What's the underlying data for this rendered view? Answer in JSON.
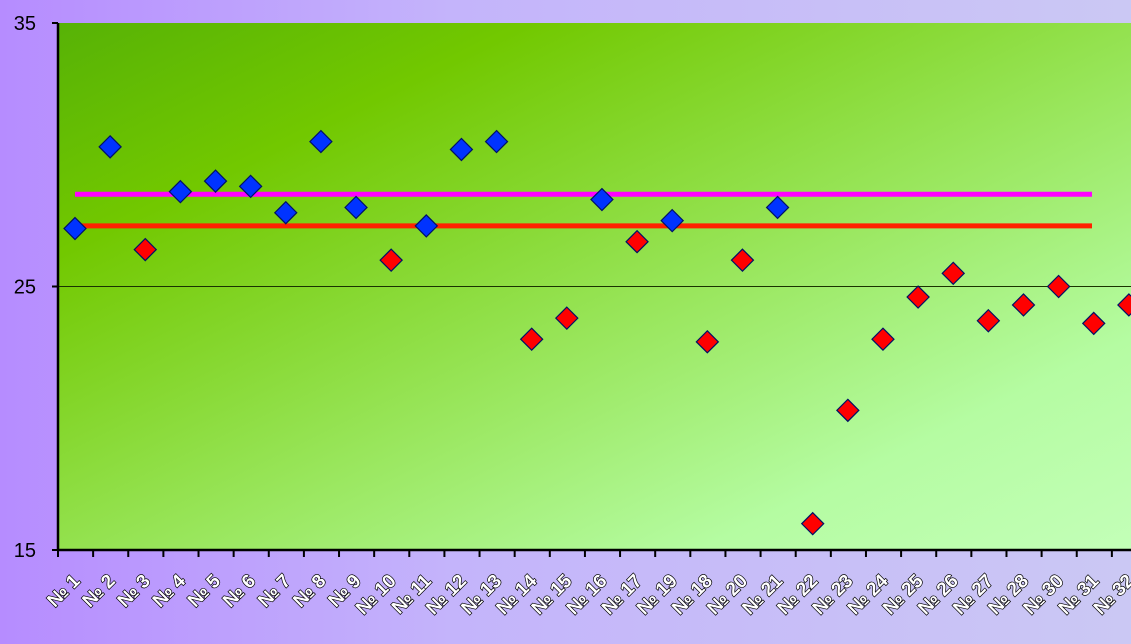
{
  "chart_data": {
    "type": "scatter",
    "categories": [
      "№ 1",
      "№ 2",
      "№ 3",
      "№ 4",
      "№ 5",
      "№ 6",
      "№ 7",
      "№ 8",
      "№ 9",
      "№ 10",
      "№ 11",
      "№ 12",
      "№ 13",
      "№ 14",
      "№ 15",
      "№ 16",
      "№ 17",
      "№ 19",
      "№ 18",
      "№ 20",
      "№ 21",
      "№ 22",
      "№ 23",
      "№ 24",
      "№ 25",
      "№ 26",
      "№ 27",
      "№ 28",
      "№ 30",
      "№ 31",
      "№ 32"
    ],
    "ylim": [
      15,
      35
    ],
    "yticks": [
      "15",
      "25",
      "35"
    ],
    "grid": "horizontal at 25",
    "series": [
      {
        "marker": "diamond",
        "color": "#0033ff",
        "points": [
          {
            "i": 0,
            "y": 27.2
          },
          {
            "i": 1,
            "y": 30.3
          },
          {
            "i": 3,
            "y": 28.6
          },
          {
            "i": 4,
            "y": 29.0
          },
          {
            "i": 5,
            "y": 28.8
          },
          {
            "i": 6,
            "y": 27.8
          },
          {
            "i": 7,
            "y": 30.5
          },
          {
            "i": 8,
            "y": 28.0
          },
          {
            "i": 10,
            "y": 27.3
          },
          {
            "i": 11,
            "y": 30.2
          },
          {
            "i": 12,
            "y": 30.5
          },
          {
            "i": 15,
            "y": 28.3
          },
          {
            "i": 17,
            "y": 27.5
          },
          {
            "i": 20,
            "y": 28.0
          }
        ]
      },
      {
        "marker": "diamond",
        "color": "#ff0000",
        "points": [
          {
            "i": 2,
            "y": 26.4
          },
          {
            "i": 9,
            "y": 26.0
          },
          {
            "i": 13,
            "y": 23.0
          },
          {
            "i": 14,
            "y": 23.8
          },
          {
            "i": 16,
            "y": 26.7
          },
          {
            "i": 18,
            "y": 22.9
          },
          {
            "i": 19,
            "y": 26.0
          },
          {
            "i": 21,
            "y": 16.0
          },
          {
            "i": 22,
            "y": 20.3
          },
          {
            "i": 23,
            "y": 23.0
          },
          {
            "i": 24,
            "y": 24.6
          },
          {
            "i": 25,
            "y": 25.5
          },
          {
            "i": 26,
            "y": 23.7
          },
          {
            "i": 27,
            "y": 24.3
          },
          {
            "i": 28,
            "y": 25.0
          },
          {
            "i": 29,
            "y": 23.6
          },
          {
            "i": 30,
            "y": 24.3
          }
        ]
      }
    ],
    "reference_lines": [
      {
        "y": 28.5,
        "color": "#ff00ff"
      },
      {
        "y": 27.3,
        "color": "#ff2200"
      }
    ]
  }
}
